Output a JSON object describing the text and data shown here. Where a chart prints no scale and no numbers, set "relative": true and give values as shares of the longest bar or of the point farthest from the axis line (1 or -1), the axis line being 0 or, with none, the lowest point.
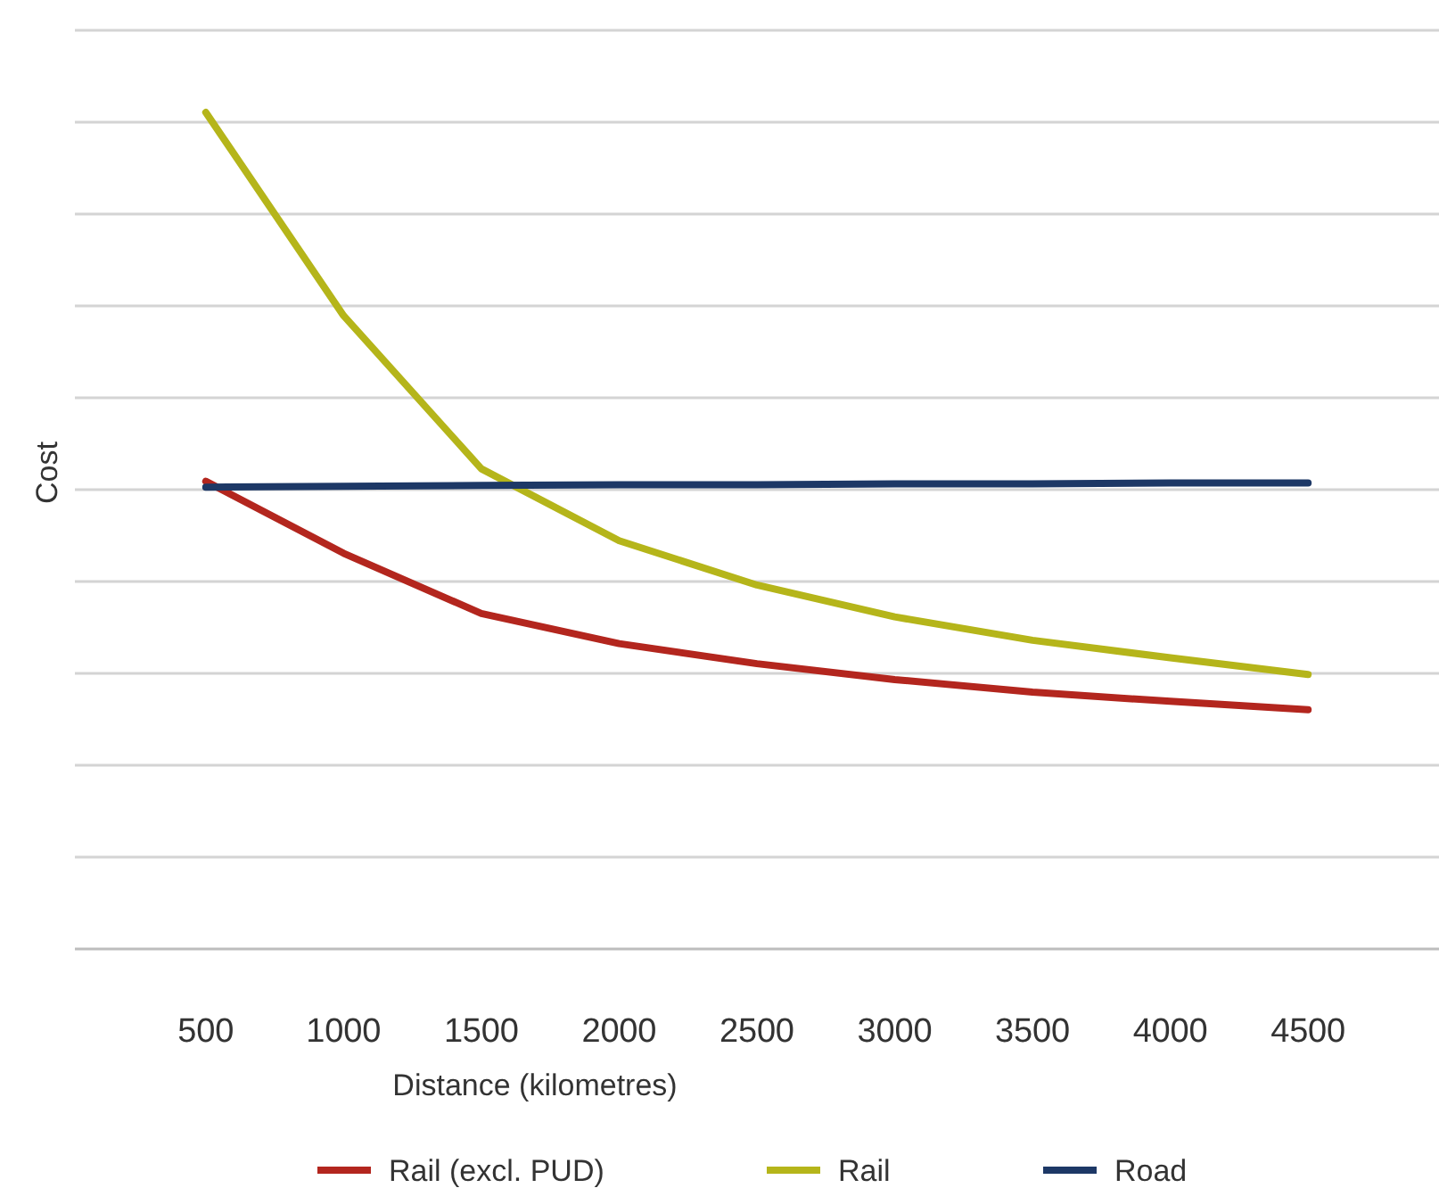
{
  "chart_data": {
    "type": "line",
    "xlabel": "Distance (kilometres)",
    "ylabel": "Cost",
    "relative": true,
    "grid": "y",
    "legend": "bottom",
    "categories": [
      "500",
      "1000",
      "1500",
      "2000",
      "2500",
      "3000",
      "3500",
      "4000",
      "4500"
    ],
    "series": [
      {
        "name": "Rail (excl. PUD)",
        "color": "#b3261e",
        "values": [
          0.559,
          0.473,
          0.401,
          0.365,
          0.341,
          0.322,
          0.307,
          0.296,
          0.286
        ]
      },
      {
        "name": "Rail",
        "color": "#b5b51a",
        "values": [
          1,
          0.757,
          0.574,
          0.488,
          0.435,
          0.397,
          0.369,
          0.348,
          0.328
        ]
      },
      {
        "name": "Road",
        "color": "#1d3866",
        "values": [
          0.552,
          0.553,
          0.554,
          0.555,
          0.555,
          0.556,
          0.556,
          0.557,
          0.557
        ]
      }
    ]
  }
}
